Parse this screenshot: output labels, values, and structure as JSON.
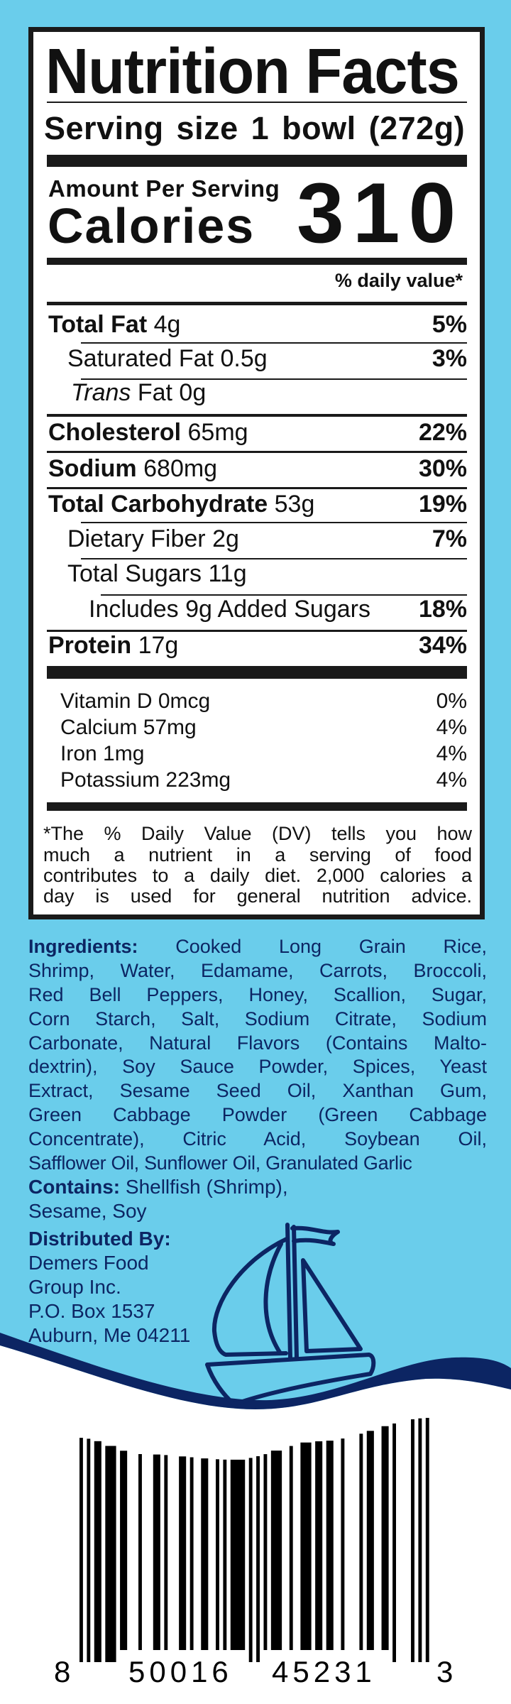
{
  "colors": {
    "background": "#6acdeb",
    "navy": "#0c2563",
    "label_ink": "#1a1a1a"
  },
  "nutrition": {
    "title": "Nutrition Facts",
    "serving_size": "Serving size 1 bowl (272g)",
    "amount_per_serving": "Amount Per Serving",
    "calories_label": "Calories",
    "calories_value": "310",
    "dv_header": "% daily value*",
    "rows": [
      {
        "name": "Total Fat",
        "amount": "4g",
        "dv": "5%"
      },
      {
        "name": "Saturated Fat",
        "amount": "0.5g",
        "dv": "3%"
      },
      {
        "name_italic": "Trans",
        "name": "Fat",
        "amount": "0g"
      },
      {
        "name": "Cholesterol",
        "amount": "65mg",
        "dv": "22%"
      },
      {
        "name": "Sodium",
        "amount": "680mg",
        "dv": "30%"
      },
      {
        "name": "Total Carbohydrate",
        "amount": "53g",
        "dv": "19%"
      },
      {
        "name": "Dietary Fiber",
        "amount": "2g",
        "dv": "7%"
      },
      {
        "name": "Total Sugars",
        "amount": "11g"
      },
      {
        "name": "Includes 9g Added Sugars",
        "dv": "18%"
      },
      {
        "name": "Protein",
        "amount": "17g",
        "dv": "34%"
      }
    ],
    "vitamins": [
      {
        "name": "Vitamin D 0mcg",
        "dv": "0%"
      },
      {
        "name": "Calcium 57mg",
        "dv": "4%"
      },
      {
        "name": "Iron 1mg",
        "dv": "4%"
      },
      {
        "name": "Potassium 223mg",
        "dv": "4%"
      }
    ],
    "footnote_lines": [
      "*The % Daily Value (DV) tells you how",
      "much a nutrient in a serving of food",
      "contributes to a daily diet. 2,000 calories a",
      "day is used for general nutrition advice."
    ]
  },
  "ingredients": {
    "label": "Ingredients:",
    "lines": [
      "Cooked Long Grain Rice,",
      "Shrimp, Water, Edamame, Carrots, Broccoli,",
      "Red Bell Peppers, Honey, Scallion, Sugar,",
      "Corn Starch, Salt, Sodium Citrate, Sodium",
      "Carbonate, Natural Flavors (Contains Malto-",
      "dextrin), Soy Sauce Powder, Spices, Yeast",
      "Extract, Sesame Seed Oil, Xanthan Gum,",
      "Green Cabbage Powder (Green Cabbage",
      "Concentrate), Citric Acid, Soybean Oil,",
      "Safflower Oil, Sunflower Oil, Granulated Garlic"
    ]
  },
  "contains": {
    "label": "Contains:",
    "line1": "Shellfish (Shrimp),",
    "line2": "Sesame, Soy"
  },
  "distributor": {
    "label": "Distributed By:",
    "lines": [
      "Demers Food",
      "Group Inc.",
      "P.O. Box 1537",
      "Auburn, Me 04211"
    ]
  },
  "logo_icon": "sailboat-icon",
  "barcode": {
    "digits": "850016452313",
    "groups": [
      "8",
      "50016",
      "45231",
      "3"
    ]
  }
}
